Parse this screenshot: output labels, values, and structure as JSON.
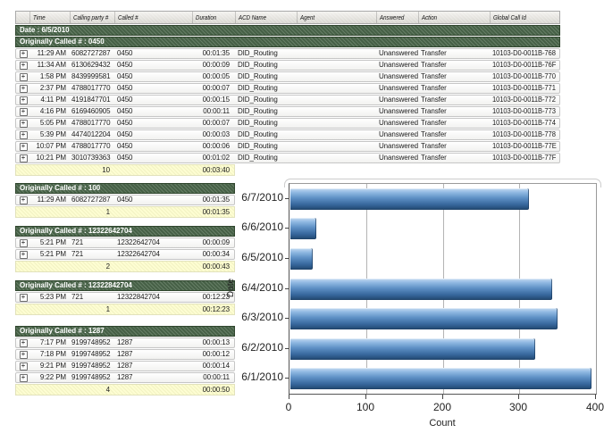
{
  "table": {
    "expand_glyph": "+",
    "columns": [
      "Time",
      "Calling party #",
      "Called #",
      "Duration",
      "ACD Name",
      "Agent",
      "Answered",
      "Action",
      "Global Call Id"
    ],
    "date_header": "Date : 6/5/2010",
    "groups": [
      {
        "header": "Originally Called # : 0450",
        "wide": true,
        "rows": [
          {
            "time": "11:29 AM",
            "calling": "6082727287",
            "called": "0450",
            "duration": "00:01:35",
            "acd": "DID_Routing",
            "agent": "",
            "answered": "Unanswered",
            "action": "Transfer",
            "gcid": "10103-D0-0011B-768"
          },
          {
            "time": "11:34 AM",
            "calling": "6130629432",
            "called": "0450",
            "duration": "00:00:09",
            "acd": "DID_Routing",
            "agent": "",
            "answered": "Unanswered",
            "action": "Transfer",
            "gcid": "10103-D0-0011B-76F"
          },
          {
            "time": "1:58 PM",
            "calling": "8439999581",
            "called": "0450",
            "duration": "00:00:05",
            "acd": "DID_Routing",
            "agent": "",
            "answered": "Unanswered",
            "action": "Transfer",
            "gcid": "10103-D0-0011B-770"
          },
          {
            "time": "2:37 PM",
            "calling": "4788017770",
            "called": "0450",
            "duration": "00:00:07",
            "acd": "DID_Routing",
            "agent": "",
            "answered": "Unanswered",
            "action": "Transfer",
            "gcid": "10103-D0-0011B-771"
          },
          {
            "time": "4:11 PM",
            "calling": "4191847701",
            "called": "0450",
            "duration": "00:00:15",
            "acd": "DID_Routing",
            "agent": "",
            "answered": "Unanswered",
            "action": "Transfer",
            "gcid": "10103-D0-0011B-772"
          },
          {
            "time": "4:16 PM",
            "calling": "6169460905",
            "called": "0450",
            "duration": "00:00:11",
            "acd": "DID_Routing",
            "agent": "",
            "answered": "Unanswered",
            "action": "Transfer",
            "gcid": "10103-D0-0011B-773"
          },
          {
            "time": "5:05 PM",
            "calling": "4788017770",
            "called": "0450",
            "duration": "00:00:07",
            "acd": "DID_Routing",
            "agent": "",
            "answered": "Unanswered",
            "action": "Transfer",
            "gcid": "10103-D0-0011B-774"
          },
          {
            "time": "5:39 PM",
            "calling": "4474012204",
            "called": "0450",
            "duration": "00:00:03",
            "acd": "DID_Routing",
            "agent": "",
            "answered": "Unanswered",
            "action": "Transfer",
            "gcid": "10103-D0-0011B-778"
          },
          {
            "time": "10:07 PM",
            "calling": "4788017770",
            "called": "0450",
            "duration": "00:00:06",
            "acd": "DID_Routing",
            "agent": "",
            "answered": "Unanswered",
            "action": "Transfer",
            "gcid": "10103-D0-0011B-77E"
          },
          {
            "time": "10:21 PM",
            "calling": "3010739363",
            "called": "0450",
            "duration": "00:01:02",
            "acd": "DID_Routing",
            "agent": "",
            "answered": "Unanswered",
            "action": "Transfer",
            "gcid": "10103-D0-0011B-77F"
          }
        ],
        "summary": {
          "count": "10",
          "duration": "00:03:40"
        }
      },
      {
        "header": "Originally Called # : 100",
        "wide": false,
        "rows": [
          {
            "time": "11:29 AM",
            "calling": "6082727287",
            "called": "0450",
            "duration": "00:01:35"
          }
        ],
        "summary": {
          "count": "1",
          "duration": "00:01:35"
        }
      },
      {
        "header": "Originally Called # : 12322642704",
        "wide": false,
        "rows": [
          {
            "time": "5:21 PM",
            "calling": "721",
            "called": "12322642704",
            "duration": "00:00:09"
          },
          {
            "time": "5:21 PM",
            "calling": "721",
            "called": "12322642704",
            "duration": "00:00:34"
          }
        ],
        "summary": {
          "count": "2",
          "duration": "00:00:43"
        }
      },
      {
        "header": "Originally Called # : 12322842704",
        "wide": false,
        "rows": [
          {
            "time": "5:23 PM",
            "calling": "721",
            "called": "12322842704",
            "duration": "00:12:23"
          }
        ],
        "summary": {
          "count": "1",
          "duration": "00:12:23"
        }
      },
      {
        "header": "Originally Called # : 1287",
        "wide": false,
        "rows": [
          {
            "time": "7:17 PM",
            "calling": "9199748952",
            "called": "1287",
            "duration": "00:00:13"
          },
          {
            "time": "7:18 PM",
            "calling": "9199748952",
            "called": "1287",
            "duration": "00:00:12"
          },
          {
            "time": "9:21 PM",
            "calling": "9199748952",
            "called": "1287",
            "duration": "00:00:14"
          },
          {
            "time": "9:22 PM",
            "calling": "9199748952",
            "called": "1287",
            "duration": "00:00:11"
          }
        ],
        "summary": {
          "count": "4",
          "duration": "00:00:50"
        }
      }
    ]
  },
  "chart_data": {
    "type": "bar",
    "orientation": "horizontal",
    "categories": [
      "6/7/2010",
      "6/6/2010",
      "6/5/2010",
      "6/4/2010",
      "6/3/2010",
      "6/2/2010",
      "6/1/2010"
    ],
    "values": [
      310,
      33,
      28,
      340,
      348,
      318,
      392
    ],
    "title": "",
    "xlabel": "Count",
    "ylabel": "Date",
    "xlim": [
      0,
      400
    ],
    "xticks": [
      "0",
      "100",
      "200",
      "300",
      "400"
    ],
    "grid": true,
    "legend": false,
    "bar_color": "#4f81bd"
  }
}
